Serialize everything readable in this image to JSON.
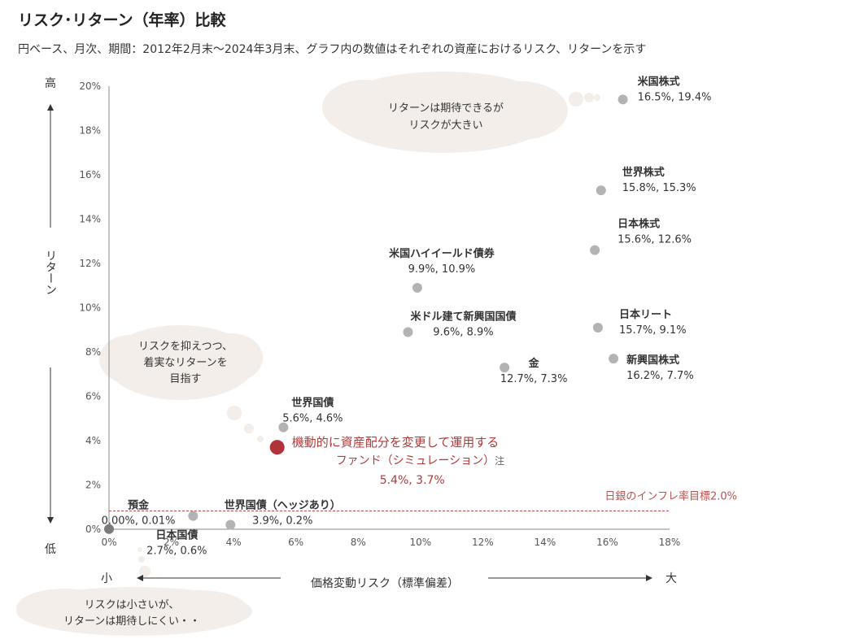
{
  "header": {
    "title": "リスク･リターン（年率）比較",
    "subtitle": "円ベース、月次、期間：2012年2月末～2024年3月末、グラフ内の数値はそれぞれの資産におけるリスク、リターンを示す"
  },
  "axis_labels": {
    "y_high": "高",
    "y_low": "低",
    "y_title": "リターン",
    "x_small": "小",
    "x_large": "大",
    "x_title": "価格変動リスク（標準偏差）"
  },
  "bubbles": {
    "top": [
      "リターンは期待できるが",
      "リスクが大きい"
    ],
    "left": [
      "リスクを抑えつつ、",
      "着実なリターンを",
      "目指す"
    ],
    "bottom": [
      "リスクは小さいが、",
      "リターンは期待しにくい・・"
    ]
  },
  "colors": {
    "point": "#b3b3b3",
    "point_dark": "#7a7a7a",
    "highlight": "#b0333a",
    "highlight_text": "#b03a3a",
    "target_line": "#c0504d",
    "bubble": "#f3eee9",
    "axis": "#888888"
  },
  "chart_data": {
    "type": "scatter",
    "xlabel": "価格変動リスク（標準偏差）",
    "ylabel": "リターン",
    "xlim": [
      0,
      18
    ],
    "ylim": [
      0,
      20
    ],
    "x_ticks": [
      "0%",
      "2%",
      "4%",
      "6%",
      "8%",
      "10%",
      "12%",
      "14%",
      "16%",
      "18%"
    ],
    "y_ticks": [
      "0%",
      "2%",
      "4%",
      "6%",
      "8%",
      "10%",
      "12%",
      "14%",
      "16%",
      "18%",
      "20%"
    ],
    "points": [
      {
        "name": "米国株式",
        "value_label": "16.5%, 19.4%",
        "x": 16.5,
        "y": 19.4
      },
      {
        "name": "世界株式",
        "value_label": "15.8%, 15.3%",
        "x": 15.8,
        "y": 15.3
      },
      {
        "name": "日本株式",
        "value_label": "15.6%, 12.6%",
        "x": 15.6,
        "y": 12.6
      },
      {
        "name": "米国ハイイールド債券",
        "value_label": "9.9%, 10.9%",
        "x": 9.9,
        "y": 10.9
      },
      {
        "name": "米ドル建て新興国国債",
        "value_label": "9.6%, 8.9%",
        "x": 9.6,
        "y": 8.9
      },
      {
        "name": "日本リート",
        "value_label": "15.7%, 9.1%",
        "x": 15.7,
        "y": 9.1
      },
      {
        "name": "金",
        "value_label": "12.7%, 7.3%",
        "x": 12.7,
        "y": 7.3
      },
      {
        "name": "新興国株式",
        "value_label": "16.2%, 7.7%",
        "x": 16.2,
        "y": 7.7
      },
      {
        "name": "世界国債",
        "value_label": "5.6%, 4.6%",
        "x": 5.6,
        "y": 4.6
      },
      {
        "name": "世界国債（ヘッジあり）",
        "value_label": "3.9%, 0.2%",
        "x": 3.9,
        "y": 0.2
      },
      {
        "name": "日本国債",
        "value_label": "2.7%, 0.6%",
        "x": 2.7,
        "y": 0.6
      },
      {
        "name": "預金",
        "value_label": "0.00%, 0.01%",
        "x": 0.0,
        "y": 0.01
      }
    ],
    "highlight": {
      "name_line1": "機動的に資産配分を変更して運用する",
      "name_line2": "ファンド（シミュレーション）",
      "note": "注",
      "value_label": "5.4%, 3.7%",
      "x": 5.4,
      "y": 3.7
    },
    "target_line": {
      "label": "日銀のインフレ率目標2.0%",
      "y": 2.0
    }
  }
}
